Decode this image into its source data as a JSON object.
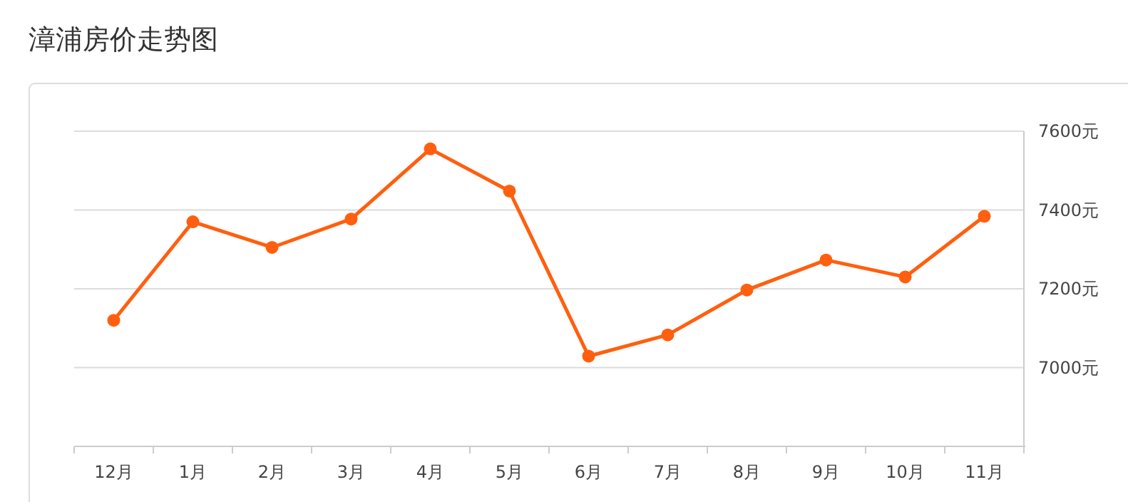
{
  "chart_data": {
    "type": "line",
    "title": "漳浦房价走势图",
    "categories": [
      "12月",
      "1月",
      "2月",
      "3月",
      "4月",
      "5月",
      "6月",
      "7月",
      "8月",
      "9月",
      "10月",
      "11月"
    ],
    "series": [
      {
        "color": "#ff5f0f",
        "values": [
          7120,
          7370,
          7305,
          7377,
          7555,
          7448,
          7029,
          7083,
          7197,
          7273,
          7230,
          7384
        ]
      }
    ],
    "ylim": [
      6800,
      7600
    ],
    "yticks": [
      {
        "value": 7000,
        "label": "7000元"
      },
      {
        "value": 7200,
        "label": "7200元"
      },
      {
        "value": 7400,
        "label": "7400元"
      },
      {
        "value": 7600,
        "label": "7600元"
      }
    ],
    "grid": "y",
    "marker": "circle",
    "line_style": "solid"
  }
}
